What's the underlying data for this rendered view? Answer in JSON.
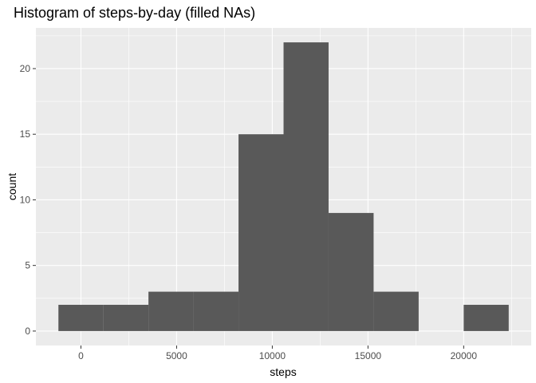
{
  "chart_data": {
    "type": "bar",
    "title": "Histogram of steps-by-day (filled NAs)",
    "xlabel": "steps",
    "ylabel": "count",
    "bins": [
      {
        "x0": -1176,
        "x1": 1176,
        "count": 2
      },
      {
        "x0": 1176,
        "x1": 3529,
        "count": 2
      },
      {
        "x0": 3529,
        "x1": 5882,
        "count": 3
      },
      {
        "x0": 5882,
        "x1": 8235,
        "count": 3
      },
      {
        "x0": 8235,
        "x1": 10588,
        "count": 15
      },
      {
        "x0": 10588,
        "x1": 12941,
        "count": 22
      },
      {
        "x0": 12941,
        "x1": 15294,
        "count": 9
      },
      {
        "x0": 15294,
        "x1": 17647,
        "count": 3
      },
      {
        "x0": 17647,
        "x1": 20000,
        "count": 0
      },
      {
        "x0": 20000,
        "x1": 22353,
        "count": 2
      }
    ],
    "xlim": [
      -2353,
      23529
    ],
    "ylim": [
      -1.1,
      23.1
    ],
    "xticks": [
      0,
      5000,
      10000,
      15000,
      20000
    ],
    "xtick_labels": [
      "0",
      "5000",
      "10000",
      "15000",
      "20000"
    ],
    "yticks": [
      0,
      5,
      10,
      15,
      20
    ],
    "ytick_labels": [
      "0",
      "5",
      "10",
      "15",
      "20"
    ],
    "grid": true,
    "colors": {
      "panel": "#ebebeb",
      "grid": "#ffffff",
      "bar": "#595959"
    }
  }
}
